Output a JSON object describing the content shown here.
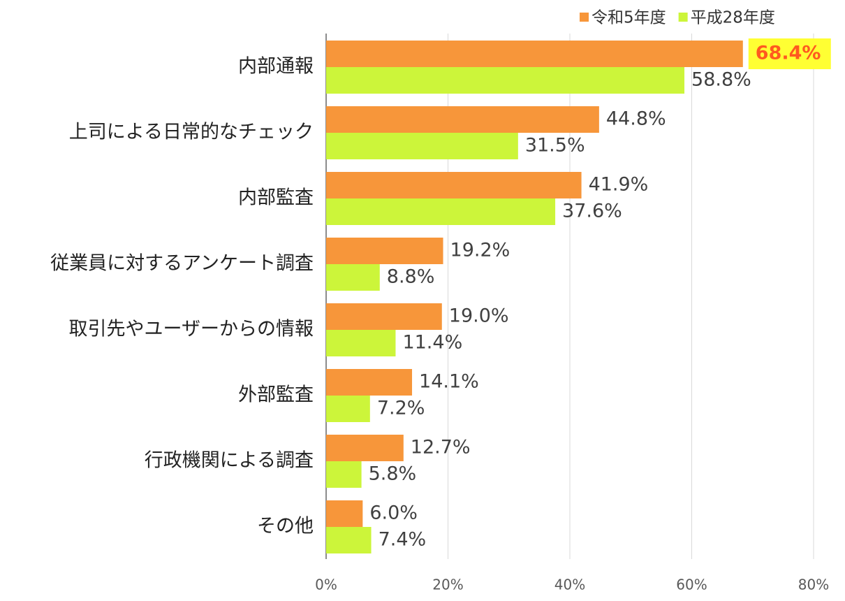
{
  "chart_data": {
    "type": "hbar",
    "categories": [
      "内部通報",
      "上司による日常的なチェック",
      "内部監査",
      "従業員に対するアンケート調査",
      "取引先やユーザーからの情報",
      "外部監査",
      "行政機関による調査",
      "その他"
    ],
    "series": [
      {
        "name": "令和5年度",
        "color": "#f7963a",
        "values": [
          68.4,
          44.8,
          41.9,
          19.2,
          19.0,
          14.1,
          12.7,
          6.0
        ],
        "value_labels": [
          "68.4%",
          "44.8%",
          "41.9%",
          "19.2%",
          "19.0%",
          "14.1%",
          "12.7%",
          "6.0%"
        ]
      },
      {
        "name": "平成28年度",
        "color": "#ccf53a",
        "values": [
          58.8,
          31.5,
          37.6,
          8.8,
          11.4,
          7.2,
          5.8,
          7.4
        ],
        "value_labels": [
          "58.8%",
          "31.5%",
          "37.6%",
          "8.8%",
          "11.4%",
          "7.2%",
          "5.8%",
          "7.4%"
        ]
      }
    ],
    "xlim": [
      0,
      80
    ],
    "xticks": [
      {
        "value": 0,
        "label": "0%"
      },
      {
        "value": 20,
        "label": "20%"
      },
      {
        "value": 40,
        "label": "40%"
      },
      {
        "value": 60,
        "label": "60%"
      },
      {
        "value": 80,
        "label": "80%"
      }
    ],
    "grid": true,
    "legend": "top-right"
  }
}
